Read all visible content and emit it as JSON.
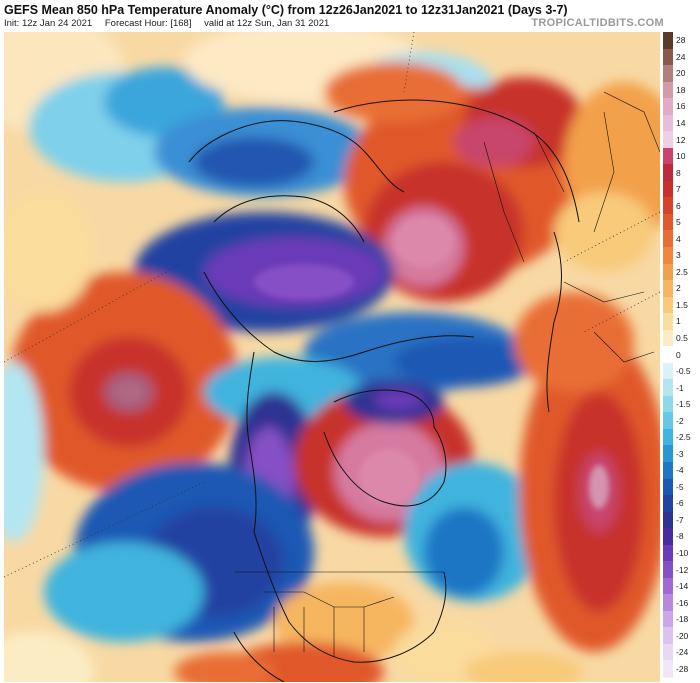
{
  "header": {
    "title": "GEFS Mean 850 hPa Temperature Anomaly (°C) from 12z26Jan2021 to 12z31Jan2021 (Days 3-7)",
    "init": "Init: 12z Jan 24 2021",
    "forecast_hour": "Forecast Hour: [168]",
    "valid": "valid at 12z Sun, Jan 31 2021",
    "brand": "TROPICALTIDBITS.COM"
  },
  "colorbar": {
    "labels": [
      "28",
      "24",
      "20",
      "18",
      "16",
      "14",
      "12",
      "10",
      "8",
      "7",
      "6",
      "5",
      "4",
      "3",
      "2.5",
      "2",
      "1.5",
      "1",
      "0.5",
      "0",
      "-0.5",
      "-1",
      "-1.5",
      "-2",
      "-2.5",
      "-3",
      "-4",
      "-5",
      "-6",
      "-7",
      "-8",
      "-10",
      "-12",
      "-14",
      "-16",
      "-18",
      "-20",
      "-24",
      "-28"
    ],
    "colors": [
      "#5a3a28",
      "#8a5a48",
      "#b0807e",
      "#d39aa8",
      "#e2a9c8",
      "#e8bcdc",
      "#eecfe6",
      "#c8446c",
      "#bc2a3e",
      "#c7302c",
      "#d4442a",
      "#e0582c",
      "#e86e34",
      "#ef883e",
      "#f3a04c",
      "#f6b660",
      "#f8ca7a",
      "#fadc9c",
      "#fcecc4",
      "#ffffff",
      "#d8f2f8",
      "#b4e6f2",
      "#8ed8ec",
      "#64c8e6",
      "#3fb4de",
      "#2a96d2",
      "#1e76c4",
      "#1d58b4",
      "#2442a2",
      "#2e3292",
      "#4a2ca0",
      "#6a3ab8",
      "#8650c6",
      "#a06ad2",
      "#b888dc",
      "#cca6e6",
      "#dcc2ee",
      "#e8d8f4",
      "#f0e8f8"
    ]
  }
}
